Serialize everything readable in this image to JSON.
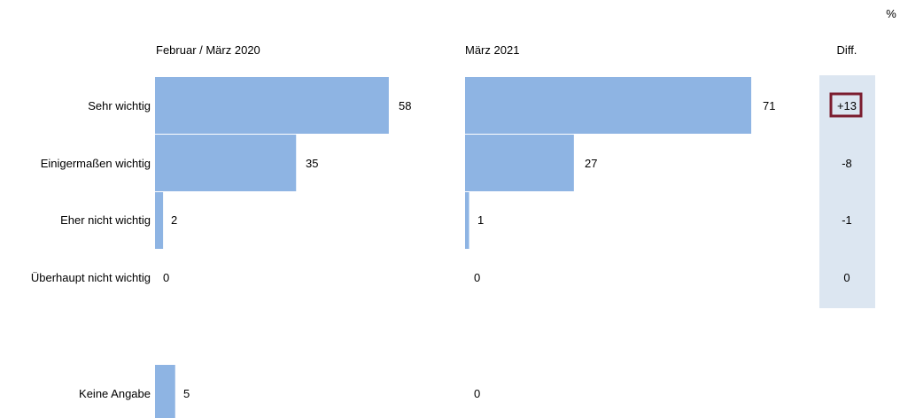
{
  "unit_label": "%",
  "chart_data": {
    "type": "bar",
    "orientation": "horizontal",
    "unit": "%",
    "categories": [
      "Sehr wichtig",
      "Einigermaßen wichtig",
      "Eher nicht wichtig",
      "Überhaupt nicht wichtig",
      "Keine Angabe"
    ],
    "series": [
      {
        "name": "Februar / März 2020",
        "values": [
          58,
          35,
          2,
          0,
          5
        ]
      },
      {
        "name": "März 2021",
        "values": [
          71,
          27,
          1,
          0,
          0
        ]
      }
    ],
    "diff": {
      "label": "Diff.",
      "values": [
        "+13",
        "-8",
        "-1",
        "0"
      ]
    },
    "xlim": [
      0,
      100
    ],
    "grid": false,
    "colors": {
      "bar": "#8eb4e3",
      "diff_panel": "#dce6f1",
      "negative": "#ff0000",
      "highlight_border": "#7b1c2e"
    }
  }
}
